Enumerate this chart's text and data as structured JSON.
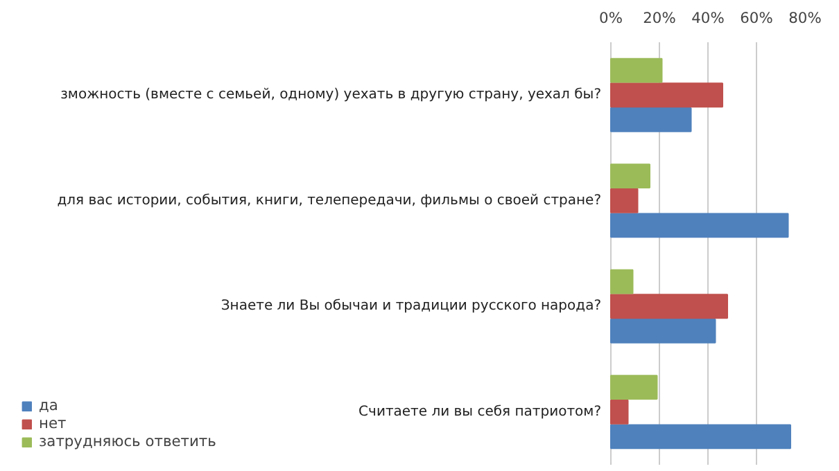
{
  "chart_data": {
    "type": "bar",
    "orientation": "horizontal",
    "categories": [
      "зможность (вместе с семьей, одному) уехать в другую страну, уехал бы?",
      "для вас истории, события, книги, телепередачи, фильмы о своей стране?",
      "Знаете ли Вы обычаи и традиции русского народа?",
      "Считаете ли вы себя патриотом?"
    ],
    "series": [
      {
        "name": "да",
        "color": "#4f81bd",
        "values": [
          33,
          73,
          43,
          74
        ]
      },
      {
        "name": "нет",
        "color": "#c0504d",
        "values": [
          46,
          11,
          48,
          7
        ]
      },
      {
        "name": "затрудняюсь ответить",
        "color": "#9bbb59",
        "values": [
          21,
          16,
          9,
          19
        ]
      }
    ],
    "xlim": [
      0,
      80
    ],
    "xticks": [
      {
        "value": 0,
        "label": "0%"
      },
      {
        "value": 20,
        "label": "20%"
      },
      {
        "value": 40,
        "label": "40%"
      },
      {
        "value": 60,
        "label": "60%"
      },
      {
        "value": 80,
        "label": "80%"
      }
    ],
    "grid": "x",
    "legend": "bottom left"
  }
}
